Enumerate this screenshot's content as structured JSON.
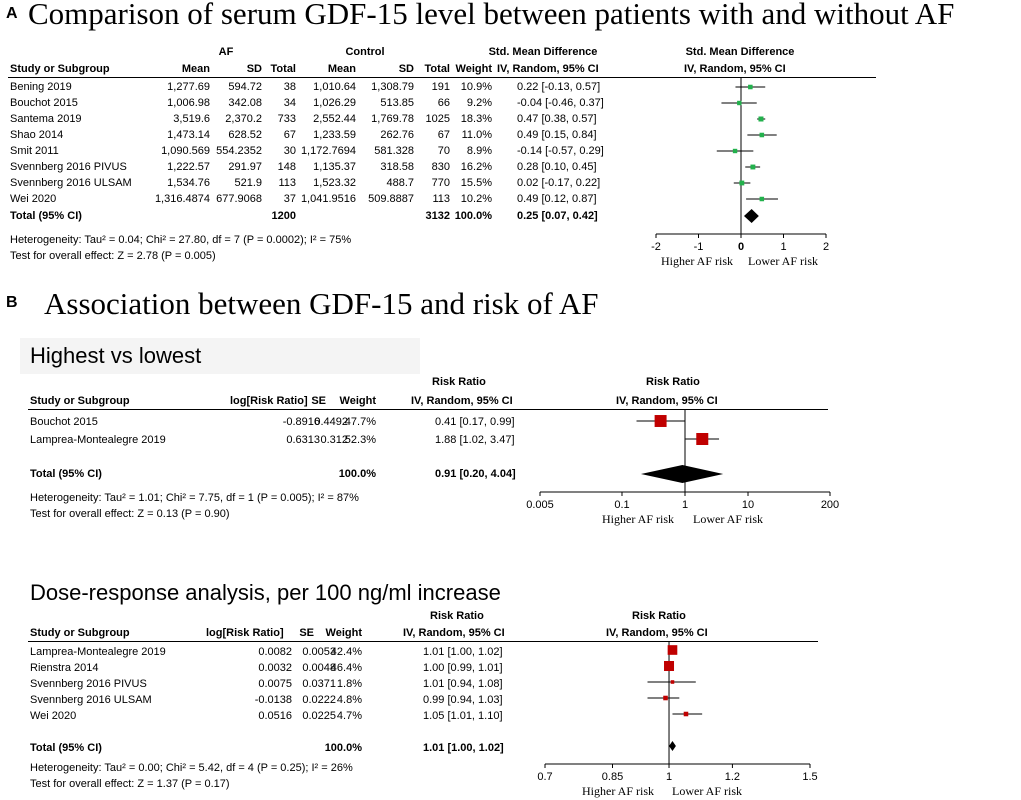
{
  "panelA": {
    "letter": "A",
    "title": "Comparison of serum GDF-15 level between patients with and without AF",
    "group1_label": "AF",
    "group2_label": "Control",
    "effect_header": "Std. Mean Difference",
    "effect_sub": "IV, Random, 95% CI",
    "forest_header": "Std. Mean Difference",
    "forest_sub": "IV, Random, 95% CI",
    "cols": {
      "study": "Study or Subgroup",
      "mean": "Mean",
      "sd": "SD",
      "total": "Total",
      "weight": "Weight"
    },
    "rows": [
      {
        "study": "Bening 2019",
        "m1": "1,277.69",
        "sd1": "594.72",
        "n1": "38",
        "m2": "1,010.64",
        "sd2": "1,308.79",
        "n2": "191",
        "w": "10.9%",
        "ci": "0.22 [-0.13, 0.57]"
      },
      {
        "study": "Bouchot 2015",
        "m1": "1,006.98",
        "sd1": "342.08",
        "n1": "34",
        "m2": "1,026.29",
        "sd2": "513.85",
        "n2": "66",
        "w": "9.2%",
        "ci": "-0.04 [-0.46, 0.37]"
      },
      {
        "study": "Santema 2019",
        "m1": "3,519.6",
        "sd1": "2,370.2",
        "n1": "733",
        "m2": "2,552.44",
        "sd2": "1,769.78",
        "n2": "1025",
        "w": "18.3%",
        "ci": "0.47 [0.38, 0.57]"
      },
      {
        "study": "Shao 2014",
        "m1": "1,473.14",
        "sd1": "628.52",
        "n1": "67",
        "m2": "1,233.59",
        "sd2": "262.76",
        "n2": "67",
        "w": "11.0%",
        "ci": "0.49 [0.15, 0.84]"
      },
      {
        "study": "Smit 2011",
        "m1": "1,090.569",
        "sd1": "554.2352",
        "n1": "30",
        "m2": "1,172.7694",
        "sd2": "581.328",
        "n2": "70",
        "w": "8.9%",
        "ci": "-0.14 [-0.57, 0.29]"
      },
      {
        "study": "Svennberg 2016 PIVUS",
        "m1": "1,222.57",
        "sd1": "291.97",
        "n1": "148",
        "m2": "1,135.37",
        "sd2": "318.58",
        "n2": "830",
        "w": "16.2%",
        "ci": "0.28 [0.10, 0.45]"
      },
      {
        "study": "Svennberg 2016 ULSAM",
        "m1": "1,534.76",
        "sd1": "521.9",
        "n1": "113",
        "m2": "1,523.32",
        "sd2": "488.7",
        "n2": "770",
        "w": "15.5%",
        "ci": "0.02 [-0.17, 0.22]"
      },
      {
        "study": "Wei 2020",
        "m1": "1,316.4874",
        "sd1": "677.9068",
        "n1": "37",
        "m2": "1,041.9516",
        "sd2": "509.8887",
        "n2": "113",
        "w": "10.2%",
        "ci": "0.49 [0.12, 0.87]"
      }
    ],
    "total": {
      "label": "Total (95% CI)",
      "n1": "1200",
      "n2": "3132",
      "w": "100.0%",
      "ci": "0.25 [0.07, 0.42]"
    },
    "heterogeneity": "Heterogeneity: Tau² = 0.04; Chi² = 27.80, df = 7 (P = 0.0002); I² = 75%",
    "overall": "Test for overall effect: Z = 2.78 (P = 0.005)",
    "ticks": [
      "-2",
      "-1",
      "0",
      "1",
      "2"
    ],
    "favours_left": "Higher AF risk",
    "favours_right": "Lower AF risk"
  },
  "panelB": {
    "letter": "B",
    "title": "Association between GDF-15 and risk of AF",
    "hl": {
      "subtitle": "Highest vs lowest",
      "cols": {
        "study": "Study or Subgroup",
        "log": "log[Risk Ratio]",
        "se": "SE",
        "weight": "Weight"
      },
      "effect_header": "Risk Ratio",
      "effect_sub": "IV, Random, 95% CI",
      "rows": [
        {
          "study": "Bouchot 2015",
          "log": "-0.8916",
          "se": "0.4492",
          "w": "47.7%",
          "ci": "0.41 [0.17, 0.99]"
        },
        {
          "study": "Lamprea-Montealegre 2019",
          "log": "0.6313",
          "se": "0.312",
          "w": "52.3%",
          "ci": "1.88 [1.02, 3.47]"
        }
      ],
      "total": {
        "label": "Total (95% CI)",
        "w": "100.0%",
        "ci": "0.91 [0.20, 4.04]"
      },
      "heterogeneity": "Heterogeneity: Tau² = 1.01; Chi² = 7.75, df = 1 (P = 0.005); I² = 87%",
      "overall": "Test for overall effect: Z = 0.13 (P = 0.90)",
      "ticks": [
        "0.005",
        "0.1",
        "1",
        "10",
        "200"
      ],
      "favours_left": "Higher AF risk",
      "favours_right": "Lower AF risk"
    },
    "dr": {
      "subtitle": "Dose-response analysis, per 100 ng/ml increase",
      "cols": {
        "study": "Study or Subgroup",
        "log": "log[Risk Ratio]",
        "se": "SE",
        "weight": "Weight"
      },
      "effect_header": "Risk Ratio",
      "effect_sub": "IV, Random, 95% CI",
      "rows": [
        {
          "study": "Lamprea-Montealegre 2019",
          "log": "0.0082",
          "se": "0.0053",
          "w": "42.4%",
          "ci": "1.01 [1.00, 1.02]"
        },
        {
          "study": "Rienstra 2014",
          "log": "0.0032",
          "se": "0.0048",
          "w": "46.4%",
          "ci": "1.00 [0.99, 1.01]"
        },
        {
          "study": "Svennberg 2016 PIVUS",
          "log": "0.0075",
          "se": "0.0371",
          "w": "1.8%",
          "ci": "1.01 [0.94, 1.08]"
        },
        {
          "study": "Svennberg 2016 ULSAM",
          "log": "-0.0138",
          "se": "0.0222",
          "w": "4.8%",
          "ci": "0.99 [0.94, 1.03]"
        },
        {
          "study": "Wei 2020",
          "log": "0.0516",
          "se": "0.0225",
          "w": "4.7%",
          "ci": "1.05 [1.01, 1.10]"
        }
      ],
      "total": {
        "label": "Total (95% CI)",
        "w": "100.0%",
        "ci": "1.01 [1.00, 1.02]"
      },
      "heterogeneity": "Heterogeneity: Tau² = 0.00; Chi² = 5.42, df = 4 (P = 0.25); I² = 26%",
      "overall": "Test for overall effect: Z = 1.37 (P = 0.17)",
      "ticks": [
        "0.7",
        "0.85",
        "1",
        "1.2",
        "1.5"
      ],
      "favours_left": "Higher AF risk",
      "favours_right": "Lower AF risk"
    }
  },
  "colors": {
    "green": "#22b14c",
    "red": "#c00000",
    "black": "#000000"
  },
  "chart_data": [
    {
      "type": "forest",
      "title": "Comparison of serum GDF-15 level between patients with and without AF",
      "measure": "Std. Mean Difference",
      "scale": "linear",
      "xlim": [
        -2,
        2
      ],
      "studies": [
        "Bening 2019",
        "Bouchot 2015",
        "Santema 2019",
        "Shao 2014",
        "Smit 2011",
        "Svennberg 2016 PIVUS",
        "Svennberg 2016 ULSAM",
        "Wei 2020"
      ],
      "est": [
        0.22,
        -0.04,
        0.47,
        0.49,
        -0.14,
        0.28,
        0.02,
        0.49
      ],
      "lo": [
        -0.13,
        -0.46,
        0.38,
        0.15,
        -0.57,
        0.1,
        -0.17,
        0.12
      ],
      "hi": [
        0.57,
        0.37,
        0.57,
        0.84,
        0.29,
        0.45,
        0.22,
        0.87
      ],
      "weight": [
        10.9,
        9.2,
        18.3,
        11.0,
        8.9,
        16.2,
        15.5,
        10.2
      ],
      "pooled": {
        "est": 0.25,
        "lo": 0.07,
        "hi": 0.42
      }
    },
    {
      "type": "forest",
      "title": "Highest vs lowest",
      "measure": "Risk Ratio",
      "scale": "log",
      "xlim": [
        0.005,
        200
      ],
      "studies": [
        "Bouchot 2015",
        "Lamprea-Montealegre 2019"
      ],
      "est": [
        0.41,
        1.88
      ],
      "lo": [
        0.17,
        1.02
      ],
      "hi": [
        0.99,
        3.47
      ],
      "weight": [
        47.7,
        52.3
      ],
      "pooled": {
        "est": 0.91,
        "lo": 0.2,
        "hi": 4.04
      }
    },
    {
      "type": "forest",
      "title": "Dose-response analysis, per 100 ng/ml increase",
      "measure": "Risk Ratio",
      "scale": "log",
      "xlim": [
        0.7,
        1.5
      ],
      "studies": [
        "Lamprea-Montealegre 2019",
        "Rienstra 2014",
        "Svennberg 2016 PIVUS",
        "Svennberg 2016 ULSAM",
        "Wei 2020"
      ],
      "est": [
        1.01,
        1.0,
        1.01,
        0.99,
        1.05
      ],
      "lo": [
        1.0,
        0.99,
        0.94,
        0.94,
        1.01
      ],
      "hi": [
        1.02,
        1.01,
        1.08,
        1.03,
        1.1
      ],
      "weight": [
        42.4,
        46.4,
        1.8,
        4.8,
        4.7
      ],
      "pooled": {
        "est": 1.01,
        "lo": 1.0,
        "hi": 1.02
      }
    }
  ]
}
